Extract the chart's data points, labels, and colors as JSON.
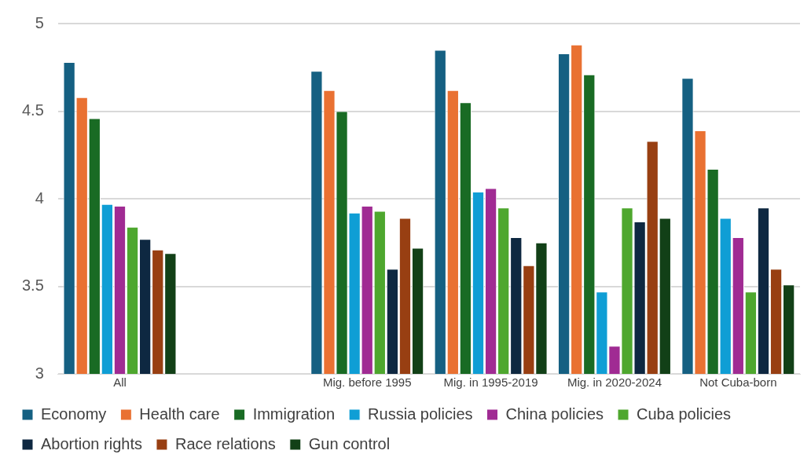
{
  "chart_data": {
    "type": "bar",
    "categories": [
      "All",
      null,
      "Mig. before 1995",
      "Mig. in 1995-2019",
      "Mig. in 2020-2024",
      "Not Cuba-born"
    ],
    "series": [
      {
        "name": "Economy",
        "color": "#156082",
        "values": [
          4.78,
          null,
          4.73,
          4.85,
          4.83,
          4.69
        ]
      },
      {
        "name": "Health care",
        "color": "#e97132",
        "values": [
          4.58,
          null,
          4.62,
          4.62,
          4.88,
          4.39
        ]
      },
      {
        "name": "Immigration",
        "color": "#196b24",
        "values": [
          4.46,
          null,
          4.5,
          4.55,
          4.71,
          4.17
        ]
      },
      {
        "name": "Russia policies",
        "color": "#0f9ed5",
        "values": [
          3.97,
          null,
          3.92,
          4.04,
          3.47,
          3.89
        ]
      },
      {
        "name": "China policies",
        "color": "#a02b93",
        "values": [
          3.96,
          null,
          3.96,
          4.06,
          3.16,
          3.78
        ]
      },
      {
        "name": "Cuba policies",
        "color": "#4ea72e",
        "values": [
          3.84,
          null,
          3.93,
          3.95,
          3.95,
          3.47
        ]
      },
      {
        "name": "Abortion rights",
        "color": "#0e2841",
        "values": [
          3.77,
          null,
          3.6,
          3.78,
          3.87,
          3.95
        ]
      },
      {
        "name": "Race relations",
        "color": "#983f12",
        "values": [
          3.71,
          null,
          3.89,
          3.62,
          4.33,
          3.6
        ]
      },
      {
        "name": "Gun control",
        "color": "#124017",
        "values": [
          3.69,
          null,
          3.72,
          3.75,
          3.89,
          3.51
        ]
      }
    ],
    "ylim": [
      3,
      5
    ],
    "yticks": [
      3,
      3.5,
      4,
      4.5,
      5
    ],
    "grid": "y",
    "legend": "bottom"
  }
}
